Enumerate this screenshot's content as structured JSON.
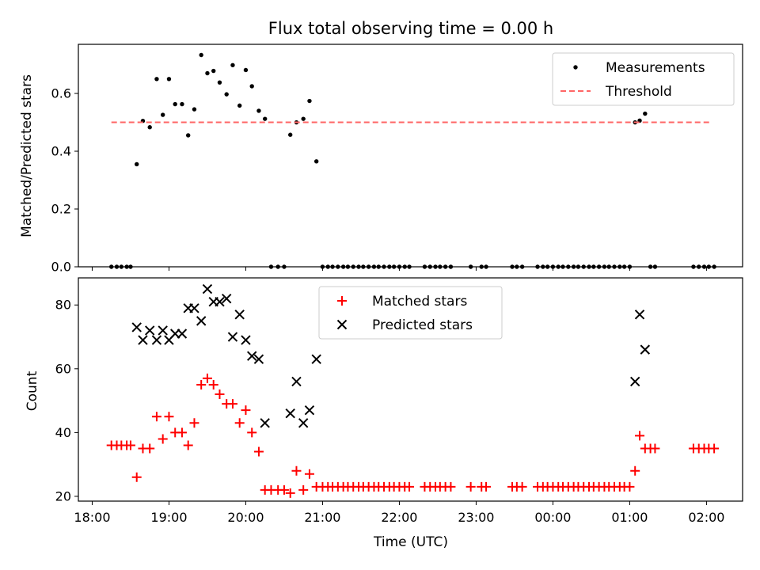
{
  "chart_data": {
    "title": "Flux total observing time = 0.00 h",
    "xlabel": "Time (UTC)",
    "x_ticks": [
      "18:00",
      "19:00",
      "20:00",
      "21:00",
      "22:00",
      "23:00",
      "00:00",
      "01:00",
      "02:00"
    ],
    "x_tick_hours": [
      0,
      1,
      2,
      3,
      4,
      5,
      6,
      7,
      8
    ],
    "xlim_hours": [
      -0.18,
      8.47
    ],
    "x_hour_origin": "18:00",
    "subplots": [
      {
        "type": "scatter",
        "ylabel": "Matched/Predicted stars",
        "ylim": [
          0,
          0.77
        ],
        "y_ticks": [
          0.0,
          0.2,
          0.4,
          0.6
        ],
        "y_tick_labels": [
          "0.0",
          "0.2",
          "0.4",
          "0.6"
        ],
        "legend_position": "top-right",
        "series": [
          {
            "name": "Measurements",
            "marker": "dot",
            "color": "#000000",
            "x": [
              0.25,
              0.32,
              0.38,
              0.45,
              0.5,
              0.58,
              0.66,
              0.75,
              0.84,
              0.92,
              1.0,
              1.08,
              1.17,
              1.25,
              1.33,
              1.42,
              1.5,
              1.58,
              1.66,
              1.75,
              1.83,
              1.92,
              2.0,
              2.08,
              2.17,
              2.25,
              2.33,
              2.42,
              2.5,
              2.58,
              2.66,
              2.75,
              2.83,
              2.92,
              3.0,
              3.07,
              3.13,
              3.2,
              3.27,
              3.33,
              3.4,
              3.47,
              3.53,
              3.6,
              3.67,
              3.73,
              3.8,
              3.87,
              3.93,
              4.0,
              4.07,
              4.13,
              4.33,
              4.4,
              4.47,
              4.53,
              4.6,
              4.67,
              4.93,
              5.07,
              5.13,
              5.47,
              5.53,
              5.6,
              5.8,
              5.87,
              5.93,
              6.0,
              6.07,
              6.13,
              6.2,
              6.27,
              6.33,
              6.4,
              6.47,
              6.53,
              6.6,
              6.67,
              6.73,
              6.8,
              6.87,
              6.93,
              7.0,
              7.07,
              7.13,
              7.2,
              7.27,
              7.33,
              7.83,
              7.9,
              7.97,
              8.03,
              8.1
            ],
            "y": [
              0,
              0,
              0,
              0,
              0,
              0.355,
              0.505,
              0.483,
              0.65,
              0.526,
              0.65,
              0.563,
              0.563,
              0.455,
              0.545,
              0.733,
              0.67,
              0.678,
              0.638,
              0.597,
              0.698,
              0.558,
              0.681,
              0.625,
              0.54,
              0.512,
              0,
              0,
              0,
              0.457,
              0.5,
              0.512,
              0.574,
              0.365,
              0,
              0,
              0,
              0,
              0,
              0,
              0,
              0,
              0,
              0,
              0,
              0,
              0,
              0,
              0,
              0,
              0,
              0,
              0,
              0,
              0,
              0,
              0,
              0,
              0,
              0,
              0,
              0,
              0,
              0,
              0,
              0,
              0,
              0,
              0,
              0,
              0,
              0,
              0,
              0,
              0,
              0,
              0,
              0,
              0,
              0,
              0,
              0,
              0,
              0.5,
              0.506,
              0.53,
              0,
              0,
              0,
              0,
              0,
              0,
              0
            ]
          },
          {
            "name": "Threshold",
            "line_style": "dashed",
            "color": "#ff6666",
            "x": [
              0.25,
              8.05
            ],
            "y": [
              0.5,
              0.5
            ]
          }
        ]
      },
      {
        "type": "scatter",
        "ylabel": "Count",
        "ylim": [
          18.5,
          88.5
        ],
        "y_ticks": [
          20,
          40,
          60,
          80
        ],
        "y_tick_labels": [
          "20",
          "40",
          "60",
          "80"
        ],
        "legend_position": "top-center",
        "series": [
          {
            "name": "Matched stars",
            "marker": "plus",
            "color": "#ff0000",
            "x": [
              0.25,
              0.32,
              0.38,
              0.45,
              0.5,
              0.58,
              0.66,
              0.75,
              0.84,
              0.92,
              1.0,
              1.08,
              1.17,
              1.25,
              1.33,
              1.42,
              1.5,
              1.58,
              1.66,
              1.75,
              1.83,
              1.92,
              2.0,
              2.08,
              2.17,
              2.25,
              2.33,
              2.42,
              2.5,
              2.58,
              2.66,
              2.75,
              2.83,
              2.92,
              3.0,
              3.07,
              3.13,
              3.2,
              3.27,
              3.33,
              3.4,
              3.47,
              3.53,
              3.6,
              3.67,
              3.73,
              3.8,
              3.87,
              3.93,
              4.0,
              4.07,
              4.13,
              4.33,
              4.4,
              4.47,
              4.53,
              4.6,
              4.67,
              4.93,
              5.07,
              5.13,
              5.47,
              5.53,
              5.6,
              5.8,
              5.87,
              5.93,
              6.0,
              6.07,
              6.13,
              6.2,
              6.27,
              6.33,
              6.4,
              6.47,
              6.53,
              6.6,
              6.67,
              6.73,
              6.8,
              6.87,
              6.93,
              7.0,
              7.07,
              7.13,
              7.2,
              7.27,
              7.33,
              7.83,
              7.9,
              7.97,
              8.03,
              8.1
            ],
            "y": [
              36,
              36,
              36,
              36,
              36,
              26,
              35,
              35,
              45,
              38,
              45,
              40,
              40,
              36,
              43,
              55,
              57,
              55,
              52,
              49,
              49,
              43,
              47,
              40,
              34,
              22,
              22,
              22,
              22,
              21,
              28,
              22,
              27,
              23,
              23,
              23,
              23,
              23,
              23,
              23,
              23,
              23,
              23,
              23,
              23,
              23,
              23,
              23,
              23,
              23,
              23,
              23,
              23,
              23,
              23,
              23,
              23,
              23,
              23,
              23,
              23,
              23,
              23,
              23,
              23,
              23,
              23,
              23,
              23,
              23,
              23,
              23,
              23,
              23,
              23,
              23,
              23,
              23,
              23,
              23,
              23,
              23,
              23,
              28,
              39,
              35,
              35,
              35,
              35,
              35,
              35,
              35,
              35
            ]
          },
          {
            "name": "Predicted stars",
            "marker": "x",
            "color": "#000000",
            "x": [
              0.58,
              0.66,
              0.75,
              0.84,
              0.92,
              1.0,
              1.08,
              1.17,
              1.25,
              1.33,
              1.42,
              1.5,
              1.58,
              1.66,
              1.75,
              1.83,
              1.92,
              2.0,
              2.08,
              2.17,
              2.25,
              2.58,
              2.66,
              2.75,
              2.83,
              2.92,
              7.07,
              7.13,
              7.2
            ],
            "y": [
              73,
              69,
              72,
              69,
              72,
              69,
              71,
              71,
              79,
              79,
              75,
              85,
              81,
              81,
              82,
              70,
              77,
              69,
              64,
              63,
              43,
              46,
              56,
              43,
              47,
              63,
              56,
              77,
              66
            ]
          }
        ]
      }
    ]
  }
}
